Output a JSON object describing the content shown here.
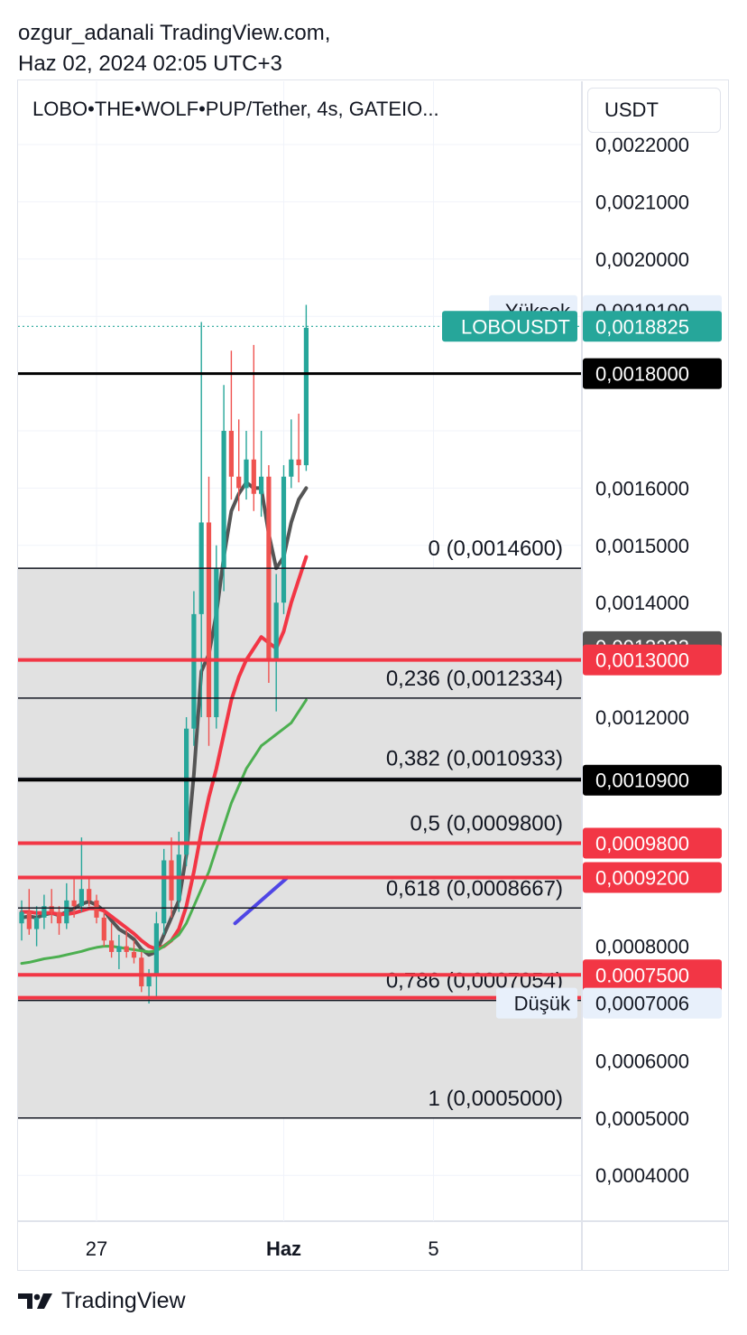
{
  "attribution": {
    "line1": "ozgur_adanali TradingView.com,",
    "line2": "Haz 02, 2024 02:05 UTC+3"
  },
  "symbol_title": "LOBO•THE•WOLF•PUP/Tether, 4s, GATEIO...",
  "currency": "USDT",
  "footer_brand": "TradingView",
  "colors": {
    "up": "#26a69a",
    "down": "#ef5350",
    "ma_fast": "#555555",
    "ma_mid": "#f23645",
    "ma_slow": "#4caf50",
    "trend_line": "#4f46e5",
    "fib_zone": "#e1e1e1",
    "grid": "#f0f3fa"
  },
  "chart_data": {
    "type": "candlestick",
    "symbol": "LOBOUSDT",
    "interval": "4s",
    "exchange": "GATEIO",
    "ylim": [
      0.00035,
      0.00222
    ],
    "price_axis_ticks": [
      "0,0022000",
      "0,0021000",
      "0,0020000",
      "0,0016000",
      "0,0015000",
      "0,0014000",
      "0,0012000",
      "0,0008000",
      "0,0006000",
      "0,0005000",
      "0,0004000"
    ],
    "time_axis_ticks": [
      {
        "label": "27",
        "bar": 10
      },
      {
        "label": "Haz",
        "bar": 35,
        "bold": true
      },
      {
        "label": "5",
        "bar": 55
      }
    ],
    "candles": [
      {
        "o": 0.00084,
        "h": 0.00088,
        "l": 0.00081,
        "c": 0.00086
      },
      {
        "o": 0.00086,
        "h": 0.0009,
        "l": 0.00082,
        "c": 0.00083
      },
      {
        "o": 0.00083,
        "h": 0.00087,
        "l": 0.0008,
        "c": 0.00085
      },
      {
        "o": 0.00085,
        "h": 0.00089,
        "l": 0.00083,
        "c": 0.00087
      },
      {
        "o": 0.00087,
        "h": 0.0009,
        "l": 0.00084,
        "c": 0.00086
      },
      {
        "o": 0.00086,
        "h": 0.00087,
        "l": 0.00082,
        "c": 0.00084
      },
      {
        "o": 0.00084,
        "h": 0.00091,
        "l": 0.00083,
        "c": 0.00088
      },
      {
        "o": 0.00088,
        "h": 0.00092,
        "l": 0.00085,
        "c": 0.00087
      },
      {
        "o": 0.00087,
        "h": 0.00099,
        "l": 0.00086,
        "c": 0.0009
      },
      {
        "o": 0.0009,
        "h": 0.00092,
        "l": 0.00087,
        "c": 0.00088
      },
      {
        "o": 0.00088,
        "h": 0.00089,
        "l": 0.00084,
        "c": 0.00085
      },
      {
        "o": 0.00085,
        "h": 0.00086,
        "l": 0.0008,
        "c": 0.00081
      },
      {
        "o": 0.00081,
        "h": 0.00084,
        "l": 0.00078,
        "c": 0.00079
      },
      {
        "o": 0.00079,
        "h": 0.00082,
        "l": 0.00076,
        "c": 0.0008
      },
      {
        "o": 0.0008,
        "h": 0.00083,
        "l": 0.00078,
        "c": 0.00079
      },
      {
        "o": 0.00079,
        "h": 0.00081,
        "l": 0.00077,
        "c": 0.00078
      },
      {
        "o": 0.00078,
        "h": 0.00079,
        "l": 0.00072,
        "c": 0.00073
      },
      {
        "o": 0.00073,
        "h": 0.00076,
        "l": 0.0007,
        "c": 0.00075
      },
      {
        "o": 0.00075,
        "h": 0.00086,
        "l": 0.00071,
        "c": 0.00084
      },
      {
        "o": 0.00084,
        "h": 0.00097,
        "l": 0.00082,
        "c": 0.00095
      },
      {
        "o": 0.00095,
        "h": 0.00099,
        "l": 0.00085,
        "c": 0.00088
      },
      {
        "o": 0.00088,
        "h": 0.001,
        "l": 0.00086,
        "c": 0.00096
      },
      {
        "o": 0.00096,
        "h": 0.0012,
        "l": 0.00094,
        "c": 0.00118
      },
      {
        "o": 0.00118,
        "h": 0.00142,
        "l": 0.00115,
        "c": 0.00138
      },
      {
        "o": 0.00138,
        "h": 0.00189,
        "l": 0.0012,
        "c": 0.00154
      },
      {
        "o": 0.00154,
        "h": 0.00162,
        "l": 0.00115,
        "c": 0.0012
      },
      {
        "o": 0.0012,
        "h": 0.0015,
        "l": 0.00118,
        "c": 0.00146
      },
      {
        "o": 0.00146,
        "h": 0.00178,
        "l": 0.00142,
        "c": 0.0017
      },
      {
        "o": 0.0017,
        "h": 0.00184,
        "l": 0.00158,
        "c": 0.00162
      },
      {
        "o": 0.00162,
        "h": 0.00172,
        "l": 0.00156,
        "c": 0.0016
      },
      {
        "o": 0.0016,
        "h": 0.0017,
        "l": 0.00158,
        "c": 0.00165
      },
      {
        "o": 0.00165,
        "h": 0.00185,
        "l": 0.00156,
        "c": 0.00159
      },
      {
        "o": 0.00159,
        "h": 0.0017,
        "l": 0.00155,
        "c": 0.00162
      },
      {
        "o": 0.00162,
        "h": 0.00164,
        "l": 0.00126,
        "c": 0.0013
      },
      {
        "o": 0.0013,
        "h": 0.00145,
        "l": 0.00121,
        "c": 0.0014
      },
      {
        "o": 0.0014,
        "h": 0.00164,
        "l": 0.00138,
        "c": 0.00162
      },
      {
        "o": 0.00162,
        "h": 0.00172,
        "l": 0.0016,
        "c": 0.00165
      },
      {
        "o": 0.00165,
        "h": 0.00173,
        "l": 0.00161,
        "c": 0.00164
      },
      {
        "o": 0.00164,
        "h": 0.00192,
        "l": 0.00163,
        "c": 0.00188
      }
    ],
    "moving_averages": [
      {
        "color": "#555555",
        "values": [
          0.00085,
          0.000852,
          0.00085,
          0.000855,
          0.000858,
          0.000854,
          0.00086,
          0.000866,
          0.000874,
          0.000878,
          0.000872,
          0.000862,
          0.000845,
          0.00083,
          0.000822,
          0.000812,
          0.000795,
          0.000785,
          0.00079,
          0.00082,
          0.00085,
          0.00088,
          0.00096,
          0.0011,
          0.00128,
          0.00131,
          0.00138,
          0.00148,
          0.00156,
          0.00159,
          0.00161,
          0.0016,
          0.0016,
          0.00152,
          0.00146,
          0.00148,
          0.00154,
          0.00158,
          0.0016
        ]
      },
      {
        "color": "#f23645",
        "values": [
          0.00086,
          0.00086,
          0.000858,
          0.000858,
          0.000858,
          0.000856,
          0.000856,
          0.000858,
          0.000862,
          0.000866,
          0.000866,
          0.000862,
          0.000852,
          0.000842,
          0.000832,
          0.000822,
          0.00081,
          0.0008,
          0.000795,
          0.0008,
          0.00081,
          0.00083,
          0.00087,
          0.00093,
          0.001,
          0.00106,
          0.00111,
          0.00117,
          0.00123,
          0.00127,
          0.0013,
          0.00132,
          0.00134,
          0.00133,
          0.00132,
          0.00135,
          0.0014,
          0.00144,
          0.00148
        ]
      },
      {
        "color": "#4caf50",
        "values": [
          0.00077,
          0.000772,
          0.000775,
          0.000778,
          0.00078,
          0.000782,
          0.000785,
          0.000788,
          0.000791,
          0.000795,
          0.000798,
          0.0008,
          0.0008,
          0.000798,
          0.000796,
          0.000794,
          0.000792,
          0.00079,
          0.000792,
          0.0008,
          0.00081,
          0.00082,
          0.00084,
          0.00087,
          0.0009,
          0.00093,
          0.00097,
          0.00101,
          0.00105,
          0.00108,
          0.00111,
          0.00113,
          0.00115,
          0.00116,
          0.00117,
          0.00118,
          0.00119,
          0.00121,
          0.00123
        ]
      }
    ],
    "fibonacci": {
      "levels": [
        {
          "ratio": "0",
          "value": 0.00146,
          "label": "0 (0,0014600)"
        },
        {
          "ratio": "0.236",
          "value": 0.0012334,
          "label": "0,236 (0,0012334)"
        },
        {
          "ratio": "0.382",
          "value": 0.0010933,
          "label": "0,382 (0,0010933)"
        },
        {
          "ratio": "0.5",
          "value": 0.00098,
          "label": "0,5 (0,0009800)"
        },
        {
          "ratio": "0.618",
          "value": 0.0008667,
          "label": "0,618 (0,0008667)"
        },
        {
          "ratio": "0.786",
          "value": 0.0007054,
          "label": "0,786 (0,0007054)"
        },
        {
          "ratio": "1",
          "value": 0.0005,
          "label": "1 (0,0005000)"
        }
      ]
    },
    "horizontal_lines": [
      {
        "value": 0.0018,
        "color": "#000000",
        "label": "0,0018000"
      },
      {
        "value": 0.0013,
        "color": "#f23645",
        "label": "0,0013000"
      },
      {
        "value": 0.00109,
        "color": "#000000",
        "label": "0,0010900"
      },
      {
        "value": 0.00098,
        "color": "#f23645",
        "label": "0,0009800"
      },
      {
        "value": 0.00092,
        "color": "#f23645",
        "label": "0,0009200"
      },
      {
        "value": 0.00075,
        "color": "#f23645",
        "label": "0,0007500"
      },
      {
        "value": 0.00071,
        "color": "#f23645",
        "label": "0,0007100"
      }
    ],
    "trend_line": {
      "points": [
        [
          28.5,
          0.00084
        ],
        [
          35.5,
          0.00092
        ]
      ]
    },
    "current_price": {
      "value": 0.0018825,
      "label": "0,0018825",
      "symbol": "LOBOUSDT"
    },
    "high": {
      "label": "Yüksek",
      "value": 0.00191,
      "value_label": "0,0019100"
    },
    "low": {
      "label": "Düşük",
      "value": 0.0007006,
      "value_label": "0,0007006"
    },
    "extra_price_label": {
      "value": 0.0013233,
      "label": "0,0013233"
    }
  }
}
